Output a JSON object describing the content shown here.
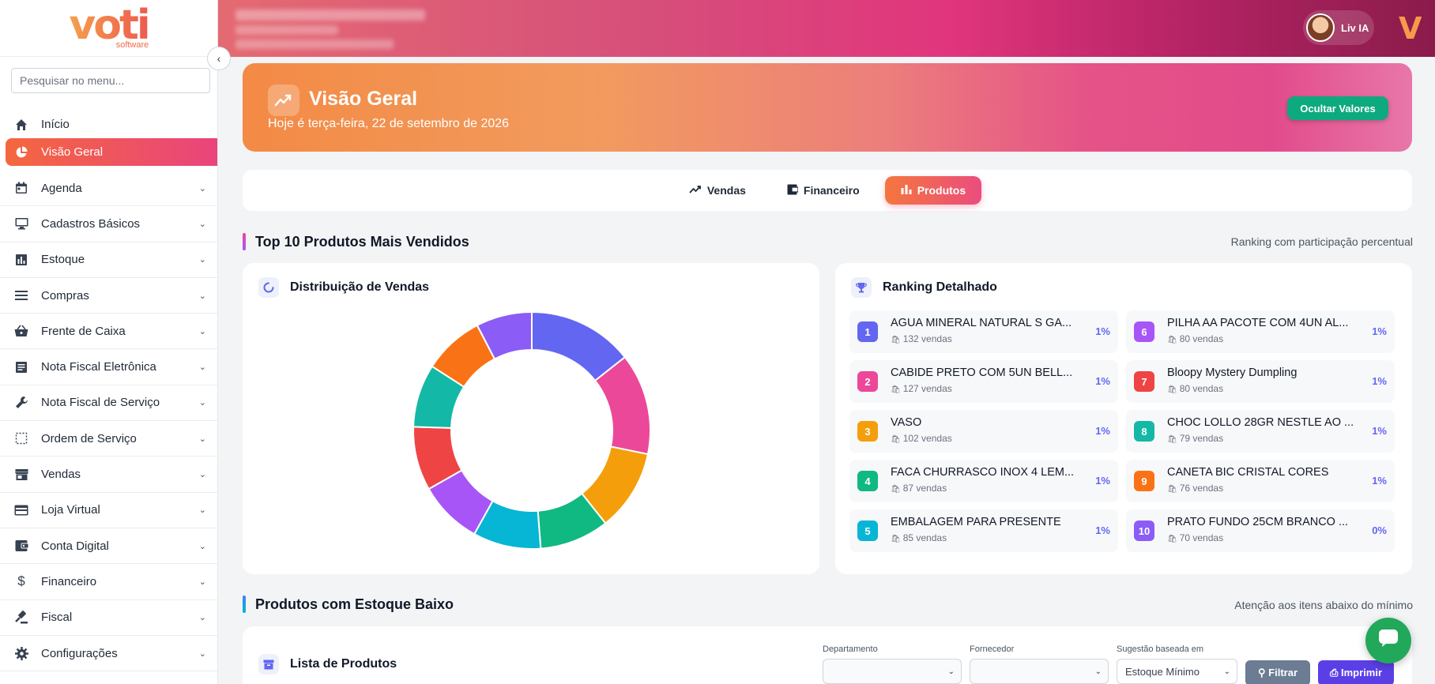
{
  "sidebar": {
    "logo_text": "voti",
    "logo_sub": "software",
    "search_placeholder": "Pesquisar no menu...",
    "items": [
      {
        "label": "Início",
        "icon": "home-icon"
      },
      {
        "label": "Visão Geral",
        "icon": "pie-chart-icon",
        "active": true
      },
      {
        "label": "Agenda",
        "icon": "calendar-icon"
      },
      {
        "label": "Cadastros Básicos",
        "icon": "monitor-icon"
      },
      {
        "label": "Estoque",
        "icon": "bar-chart-icon"
      },
      {
        "label": "Compras",
        "icon": "list-icon"
      },
      {
        "label": "Frente de Caixa",
        "icon": "basket-icon"
      },
      {
        "label": "Nota Fiscal Eletrônica",
        "icon": "document-icon"
      },
      {
        "label": "Nota Fiscal de Serviço",
        "icon": "wrench-icon"
      },
      {
        "label": "Ordem de Serviço",
        "icon": "dashed-box-icon"
      },
      {
        "label": "Vendas",
        "icon": "store-icon"
      },
      {
        "label": "Loja Virtual",
        "icon": "card-icon"
      },
      {
        "label": "Conta Digital",
        "icon": "wallet-icon"
      },
      {
        "label": "Financeiro",
        "icon": "dollar-icon"
      },
      {
        "label": "Fiscal",
        "icon": "gavel-icon"
      },
      {
        "label": "Configurações",
        "icon": "gear-icon"
      }
    ]
  },
  "topbar": {
    "user_name": "Liv IA"
  },
  "hero": {
    "title": "Visão Geral",
    "subtitle": "Hoje é terça-feira, 22 de setembro de 2026",
    "hide_values_label": "Ocultar Valores"
  },
  "tabs": [
    {
      "label": "Vendas",
      "icon": "trend-icon"
    },
    {
      "label": "Financeiro",
      "icon": "wallet-icon"
    },
    {
      "label": "Produtos",
      "icon": "bar-chart-icon",
      "active": true
    }
  ],
  "top_products": {
    "title": "Top 10 Produtos Mais Vendidos",
    "subtitle": "Ranking com participação percentual",
    "chart_title": "Distribuição de Vendas",
    "ranking_title": "Ranking Detalhado",
    "ranking": [
      {
        "rank": "1",
        "name": "AGUA MINERAL NATURAL S GA...",
        "sales": "132 vendas",
        "pct": "1%",
        "color": "#6366f1"
      },
      {
        "rank": "2",
        "name": "CABIDE PRETO COM 5UN BELL...",
        "sales": "127 vendas",
        "pct": "1%",
        "color": "#ec4899"
      },
      {
        "rank": "3",
        "name": "VASO",
        "sales": "102 vendas",
        "pct": "1%",
        "color": "#f59e0b"
      },
      {
        "rank": "4",
        "name": "FACA CHURRASCO INOX 4 LEM...",
        "sales": "87 vendas",
        "pct": "1%",
        "color": "#10b981"
      },
      {
        "rank": "5",
        "name": "EMBALAGEM PARA PRESENTE",
        "sales": "85 vendas",
        "pct": "1%",
        "color": "#06b6d4"
      },
      {
        "rank": "6",
        "name": "PILHA AA PACOTE COM 4UN AL...",
        "sales": "80 vendas",
        "pct": "1%",
        "color": "#a855f7"
      },
      {
        "rank": "7",
        "name": "Bloopy Mystery Dumpling",
        "sales": "80 vendas",
        "pct": "1%",
        "color": "#ef4444"
      },
      {
        "rank": "8",
        "name": "CHOC LOLLO 28GR NESTLE AO ...",
        "sales": "79 vendas",
        "pct": "1%",
        "color": "#14b8a6"
      },
      {
        "rank": "9",
        "name": "CANETA BIC CRISTAL CORES",
        "sales": "76 vendas",
        "pct": "1%",
        "color": "#f97316"
      },
      {
        "rank": "10",
        "name": "PRATO FUNDO 25CM BRANCO ...",
        "sales": "70 vendas",
        "pct": "0%",
        "color": "#8b5cf6"
      }
    ]
  },
  "chart_data": {
    "type": "pie",
    "categories": [
      "AGUA MINERAL NATURAL S GA...",
      "CABIDE PRETO COM 5UN BELL...",
      "VASO",
      "FACA CHURRASCO INOX 4 LEM...",
      "EMBALAGEM PARA PRESENTE",
      "PILHA AA PACOTE COM 4UN AL...",
      "Bloopy Mystery Dumpling",
      "CHOC LOLLO 28GR NESTLE AO ...",
      "CANETA BIC CRISTAL CORES",
      "PRATO FUNDO 25CM BRANCO ..."
    ],
    "values": [
      132,
      127,
      102,
      87,
      85,
      80,
      80,
      79,
      76,
      70
    ],
    "colors": [
      "#6366f1",
      "#ec4899",
      "#f59e0b",
      "#10b981",
      "#06b6d4",
      "#a855f7",
      "#ef4444",
      "#14b8a6",
      "#f97316",
      "#8b5cf6"
    ],
    "donut": true,
    "title": "Distribuição de Vendas"
  },
  "low_stock": {
    "title": "Produtos com Estoque Baixo",
    "subtitle": "Atenção aos itens abaixo do mínimo",
    "list_title": "Lista de Produtos",
    "filters": {
      "department_label": "Departamento",
      "department_value": "",
      "supplier_label": "Fornecedor",
      "supplier_value": "",
      "suggestion_label": "Sugestão baseada em",
      "suggestion_value": "Estoque Mínimo"
    },
    "filter_button": "Filtrar",
    "print_button": "Imprimir"
  },
  "colors": {
    "accent": "#ea4d7e",
    "success": "#0eaa7f",
    "primary": "#5b3fe6"
  }
}
